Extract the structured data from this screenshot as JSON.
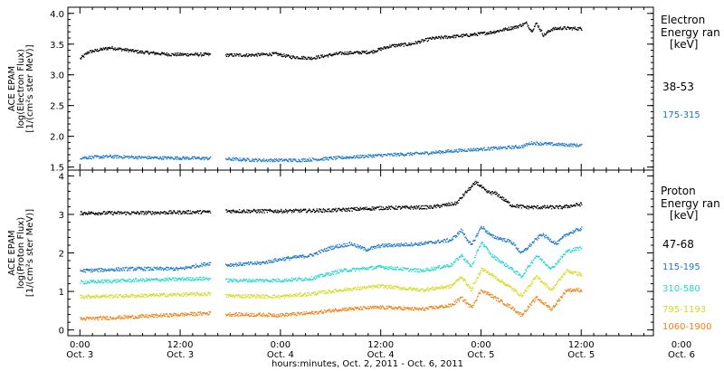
{
  "chart_data": [
    {
      "type": "scatter",
      "panel": "electron",
      "ylabel_lines": [
        "ACE EPAM",
        "log(Electron Flux)",
        "[1/(cm²s ster MeV)]"
      ],
      "ylim": [
        1.45,
        4.1
      ],
      "yticks": [
        1.5,
        2.0,
        2.5,
        3.0,
        3.5,
        4.0
      ],
      "ytick_labels": [
        "1.5",
        "2.0",
        "2.5",
        "3.0",
        "3.5",
        "4.0"
      ],
      "legend_title": [
        "Electron",
        "Energy ran",
        "[keV]"
      ],
      "series": [
        {
          "name": "38-53",
          "color": "#000000",
          "knots": [
            [
              0,
              3.27
            ],
            [
              0.08,
              3.38
            ],
            [
              0.3,
              3.45
            ],
            [
              0.6,
              3.38
            ],
            [
              0.9,
              3.34
            ],
            [
              1.3,
              3.34
            ],
            [
              1.45,
              3.33
            ],
            [
              1.7,
              3.33
            ],
            [
              1.95,
              3.35
            ],
            [
              2.1,
              3.3
            ],
            [
              2.3,
              3.28
            ],
            [
              2.6,
              3.36
            ],
            [
              2.9,
              3.38
            ],
            [
              3.1,
              3.48
            ],
            [
              3.3,
              3.51
            ],
            [
              3.5,
              3.6
            ],
            [
              3.7,
              3.63
            ],
            [
              3.85,
              3.65
            ],
            [
              4.1,
              3.7
            ],
            [
              4.35,
              3.79
            ],
            [
              4.45,
              3.85
            ],
            [
              4.5,
              3.72
            ],
            [
              4.55,
              3.85
            ],
            [
              4.62,
              3.65
            ],
            [
              4.7,
              3.75
            ],
            [
              4.8,
              3.77
            ],
            [
              5.0,
              3.76
            ]
          ]
        },
        {
          "name": "175-315",
          "color": "#1a78c8",
          "knots": [
            [
              0,
              1.66
            ],
            [
              0.3,
              1.68
            ],
            [
              0.7,
              1.66
            ],
            [
              1.3,
              1.65
            ],
            [
              1.45,
              1.64
            ],
            [
              1.8,
              1.62
            ],
            [
              2.2,
              1.62
            ],
            [
              2.6,
              1.66
            ],
            [
              3.0,
              1.7
            ],
            [
              3.4,
              1.73
            ],
            [
              3.8,
              1.78
            ],
            [
              4.1,
              1.81
            ],
            [
              4.4,
              1.84
            ],
            [
              4.5,
              1.9
            ],
            [
              4.7,
              1.88
            ],
            [
              5.0,
              1.86
            ]
          ]
        }
      ]
    },
    {
      "type": "scatter",
      "panel": "proton",
      "ylabel_lines": [
        "ACE EPAM",
        "log(Proton Flux)",
        "[1/(cm²s ster MeV)]"
      ],
      "ylim": [
        -0.15,
        4.15
      ],
      "yticks": [
        0,
        1,
        2,
        3,
        4
      ],
      "ytick_labels": [
        "0",
        "1",
        "2",
        "3",
        "4"
      ],
      "legend_title": [
        "Proton",
        "Energy ran",
        "[keV]"
      ],
      "series": [
        {
          "name": "47-68",
          "color": "#000000",
          "knots": [
            [
              0,
              3.05
            ],
            [
              0.5,
              3.05
            ],
            [
              1.3,
              3.08
            ],
            [
              1.45,
              3.1
            ],
            [
              2.0,
              3.1
            ],
            [
              2.5,
              3.12
            ],
            [
              3.0,
              3.18
            ],
            [
              3.5,
              3.2
            ],
            [
              3.75,
              3.3
            ],
            [
              3.85,
              3.6
            ],
            [
              3.95,
              3.85
            ],
            [
              4.05,
              3.6
            ],
            [
              4.15,
              3.55
            ],
            [
              4.3,
              3.25
            ],
            [
              4.45,
              3.2
            ],
            [
              4.6,
              3.2
            ],
            [
              4.8,
              3.2
            ],
            [
              5.0,
              3.28
            ]
          ]
        },
        {
          "name": "115-195",
          "color": "#1a78c8",
          "knots": [
            [
              0,
              1.55
            ],
            [
              0.5,
              1.6
            ],
            [
              1.0,
              1.6
            ],
            [
              1.3,
              1.75
            ],
            [
              1.45,
              1.7
            ],
            [
              1.8,
              1.75
            ],
            [
              2.0,
              1.85
            ],
            [
              2.3,
              1.95
            ],
            [
              2.5,
              2.15
            ],
            [
              2.7,
              2.25
            ],
            [
              2.85,
              2.1
            ],
            [
              3.0,
              2.2
            ],
            [
              3.4,
              2.25
            ],
            [
              3.7,
              2.35
            ],
            [
              3.8,
              2.6
            ],
            [
              3.9,
              2.2
            ],
            [
              4.0,
              2.7
            ],
            [
              4.1,
              2.45
            ],
            [
              4.3,
              2.3
            ],
            [
              4.4,
              2.0
            ],
            [
              4.6,
              2.5
            ],
            [
              4.75,
              2.25
            ],
            [
              4.85,
              2.5
            ],
            [
              5.0,
              2.65
            ]
          ]
        },
        {
          "name": "310-580",
          "color": "#22d8d0",
          "knots": [
            [
              0,
              1.25
            ],
            [
              0.5,
              1.3
            ],
            [
              1.3,
              1.35
            ],
            [
              1.45,
              1.3
            ],
            [
              2.0,
              1.3
            ],
            [
              2.3,
              1.35
            ],
            [
              2.6,
              1.55
            ],
            [
              3.0,
              1.65
            ],
            [
              3.4,
              1.55
            ],
            [
              3.7,
              1.7
            ],
            [
              3.8,
              1.95
            ],
            [
              3.9,
              1.65
            ],
            [
              4.0,
              2.3
            ],
            [
              4.1,
              1.95
            ],
            [
              4.3,
              1.6
            ],
            [
              4.4,
              1.4
            ],
            [
              4.55,
              1.95
            ],
            [
              4.7,
              1.6
            ],
            [
              4.85,
              2.05
            ],
            [
              5.0,
              2.15
            ]
          ]
        },
        {
          "name": "795-1193",
          "color": "#d8d820",
          "knots": [
            [
              0,
              0.88
            ],
            [
              0.5,
              0.9
            ],
            [
              1.3,
              0.95
            ],
            [
              1.45,
              0.9
            ],
            [
              2.0,
              0.88
            ],
            [
              2.3,
              0.95
            ],
            [
              2.6,
              1.05
            ],
            [
              3.0,
              1.15
            ],
            [
              3.4,
              1.05
            ],
            [
              3.7,
              1.15
            ],
            [
              3.8,
              1.4
            ],
            [
              3.9,
              1.05
            ],
            [
              4.0,
              1.6
            ],
            [
              4.1,
              1.45
            ],
            [
              4.3,
              1.1
            ],
            [
              4.4,
              0.9
            ],
            [
              4.55,
              1.4
            ],
            [
              4.7,
              1.05
            ],
            [
              4.85,
              1.55
            ],
            [
              5.0,
              1.45
            ]
          ]
        },
        {
          "name": "1060-1900",
          "color": "#f08010",
          "knots": [
            [
              0,
              0.3
            ],
            [
              0.5,
              0.35
            ],
            [
              1.3,
              0.45
            ],
            [
              1.45,
              0.42
            ],
            [
              2.0,
              0.4
            ],
            [
              2.3,
              0.45
            ],
            [
              2.6,
              0.55
            ],
            [
              3.0,
              0.6
            ],
            [
              3.4,
              0.55
            ],
            [
              3.7,
              0.65
            ],
            [
              3.8,
              0.85
            ],
            [
              3.9,
              0.6
            ],
            [
              4.0,
              1.05
            ],
            [
              4.1,
              0.9
            ],
            [
              4.3,
              0.6
            ],
            [
              4.4,
              0.4
            ],
            [
              4.55,
              0.85
            ],
            [
              4.7,
              0.55
            ],
            [
              4.85,
              1.05
            ],
            [
              5.0,
              1.05
            ]
          ]
        }
      ]
    }
  ],
  "x_axis": {
    "range_days": [
      -0.12,
      5.72
    ],
    "data_range_days": [
      0,
      5.0
    ],
    "gap_days": [
      1.3,
      1.45
    ],
    "ticks": [
      {
        "day": 0.0,
        "time": "0:00",
        "date": "Oct. 3"
      },
      {
        "day": 1.0,
        "time": "12:00",
        "date": "Oct. 3"
      },
      {
        "day": 2.0,
        "time": "0:00",
        "date": "Oct. 4"
      },
      {
        "day": 3.0,
        "time": "12:00",
        "date": "Oct. 4"
      },
      {
        "day": 4.0,
        "time": "0:00",
        "date": "Oct. 5"
      },
      {
        "day": 5.0,
        "time": "12:00",
        "date": "Oct. 5"
      },
      {
        "day": 6.0,
        "time": "0:00",
        "date": "Oct. 6"
      }
    ],
    "xlabel": "hours:minutes, Oct.  2, 2011 - Oct.  6, 2011"
  }
}
